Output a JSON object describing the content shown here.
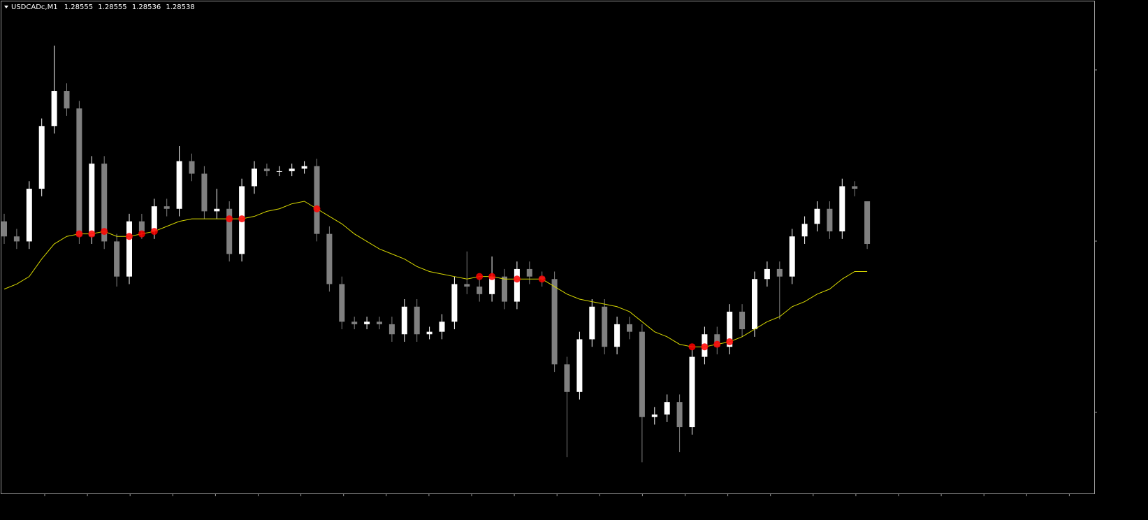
{
  "chart_data": {
    "type": "candlestick",
    "title": "USDCADc,M1",
    "up_color": "#ffffff",
    "down_color": "#808080",
    "ylim": [
      1.28438,
      1.28635
    ],
    "open": [
      1.28547,
      1.28541,
      1.28539,
      1.2856,
      1.28585,
      1.28599,
      1.28592,
      1.28541,
      1.2857,
      1.28539,
      1.28525,
      1.28547,
      1.28543,
      1.28553,
      1.28552,
      1.28571,
      1.28566,
      1.28551,
      1.28552,
      1.28534,
      1.28561,
      1.28568,
      1.28567,
      1.28567,
      1.28568,
      1.28569,
      1.28542,
      1.28522,
      1.28507,
      1.28506,
      1.28507,
      1.28506,
      1.28502,
      1.28513,
      1.28502,
      1.28503,
      1.28507,
      1.28522,
      1.28521,
      1.28518,
      1.28525,
      1.28515,
      1.28528,
      1.28525,
      1.28524,
      1.2849,
      1.28479,
      1.285,
      1.28513,
      1.28497,
      1.28506,
      1.28503,
      1.28469,
      1.2847,
      1.28475,
      1.28465,
      1.28493,
      1.28502,
      1.28497,
      1.28511,
      1.28504,
      1.28524,
      1.28528,
      1.28525,
      1.28541,
      1.28546,
      1.28552,
      1.28543,
      1.28561,
      1.28555
    ],
    "high": [
      1.2855,
      1.28544,
      1.28563,
      1.28588,
      1.28617,
      1.28602,
      1.28595,
      1.28573,
      1.28573,
      1.28542,
      1.2855,
      1.2855,
      1.28556,
      1.28556,
      1.28577,
      1.28574,
      1.28569,
      1.2856,
      1.28555,
      1.28564,
      1.28571,
      1.2857,
      1.28569,
      1.2857,
      1.28571,
      1.28572,
      1.28545,
      1.28525,
      1.28509,
      1.28509,
      1.28509,
      1.28509,
      1.28516,
      1.28516,
      1.28505,
      1.2851,
      1.28525,
      1.28535,
      1.28524,
      1.28533,
      1.28528,
      1.28531,
      1.28531,
      1.28527,
      1.28527,
      1.28493,
      1.28503,
      1.28516,
      1.28516,
      1.28509,
      1.28509,
      1.28506,
      1.28473,
      1.28478,
      1.28478,
      1.28496,
      1.28505,
      1.28505,
      1.28514,
      1.28514,
      1.28527,
      1.28531,
      1.28531,
      1.28544,
      1.28549,
      1.28555,
      1.28555,
      1.28564,
      1.28563,
      1.28555
    ],
    "low": [
      1.28538,
      1.28536,
      1.28536,
      1.28557,
      1.28582,
      1.28589,
      1.28538,
      1.28538,
      1.28536,
      1.28521,
      1.28522,
      1.2854,
      1.2854,
      1.28549,
      1.28549,
      1.28563,
      1.28548,
      1.28548,
      1.28531,
      1.28531,
      1.28558,
      1.28565,
      1.28565,
      1.28565,
      1.28566,
      1.28539,
      1.28519,
      1.28504,
      1.28504,
      1.28504,
      1.28504,
      1.28499,
      1.28499,
      1.28499,
      1.285,
      1.285,
      1.28504,
      1.28518,
      1.28515,
      1.28515,
      1.28512,
      1.28512,
      1.28522,
      1.28521,
      1.28487,
      1.28453,
      1.28476,
      1.28497,
      1.28494,
      1.28494,
      1.285,
      1.28451,
      1.28466,
      1.28467,
      1.28455,
      1.28462,
      1.2849,
      1.28494,
      1.28494,
      1.28501,
      1.28501,
      1.28521,
      1.28508,
      1.28522,
      1.28538,
      1.28543,
      1.2854,
      1.2854,
      1.28557,
      1.28536
    ],
    "close": [
      1.28541,
      1.28539,
      1.2856,
      1.28585,
      1.28599,
      1.28592,
      1.28541,
      1.2857,
      1.28539,
      1.28525,
      1.28547,
      1.28543,
      1.28553,
      1.28552,
      1.28571,
      1.28566,
      1.28551,
      1.28552,
      1.28534,
      1.28561,
      1.28568,
      1.28567,
      1.28567,
      1.28568,
      1.28569,
      1.28542,
      1.28522,
      1.28507,
      1.28506,
      1.28507,
      1.28506,
      1.28502,
      1.28513,
      1.28502,
      1.28503,
      1.28507,
      1.28522,
      1.28521,
      1.28518,
      1.28525,
      1.28515,
      1.28528,
      1.28525,
      1.28524,
      1.2849,
      1.28479,
      1.285,
      1.28513,
      1.28497,
      1.28506,
      1.28503,
      1.28469,
      1.2847,
      1.28475,
      1.28465,
      1.28493,
      1.28502,
      1.28497,
      1.28511,
      1.28504,
      1.28524,
      1.28528,
      1.28525,
      1.28541,
      1.28546,
      1.28552,
      1.28543,
      1.28561,
      1.2856,
      1.28538
    ],
    "ma": {
      "color": "#d8d800",
      "values": [
        1.2852,
        1.28522,
        1.28525,
        1.28532,
        1.28538,
        1.28541,
        1.28542,
        1.28542,
        1.28543,
        1.28541,
        1.28541,
        1.28542,
        1.28543,
        1.28545,
        1.28547,
        1.28548,
        1.28548,
        1.28548,
        1.28548,
        1.28548,
        1.28549,
        1.28551,
        1.28552,
        1.28554,
        1.28555,
        1.28552,
        1.28549,
        1.28546,
        1.28542,
        1.28539,
        1.28536,
        1.28534,
        1.28532,
        1.28529,
        1.28527,
        1.28526,
        1.28525,
        1.28524,
        1.28525,
        1.28525,
        1.28524,
        1.28524,
        1.28524,
        1.28524,
        1.28521,
        1.28518,
        1.28516,
        1.28515,
        1.28514,
        1.28513,
        1.28511,
        1.28507,
        1.28503,
        1.28501,
        1.28498,
        1.28497,
        1.28497,
        1.28498,
        1.28499,
        1.28501,
        1.28504,
        1.28507,
        1.28509,
        1.28513,
        1.28515,
        1.28518,
        1.2852,
        1.28524,
        1.28527,
        1.28527
      ]
    },
    "signals": {
      "color": "#ff0000",
      "indices": [
        6,
        7,
        8,
        10,
        11,
        12,
        18,
        19,
        25,
        38,
        39,
        41,
        43,
        55,
        56,
        57,
        58
      ]
    }
  }
}
